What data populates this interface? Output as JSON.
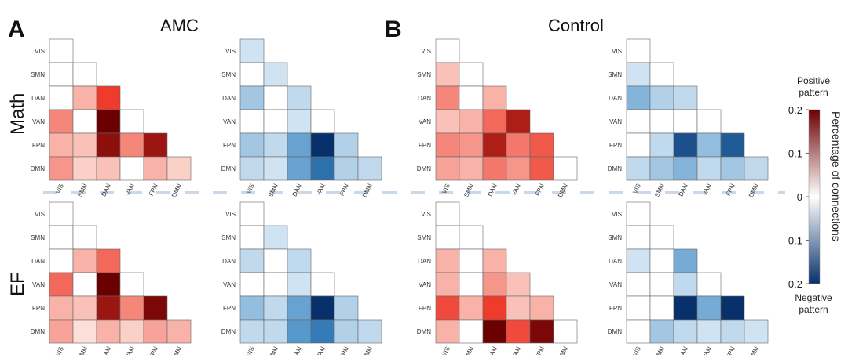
{
  "labels": {
    "panel_a": "A",
    "panel_b": "B",
    "group_a": "AMC",
    "group_b": "Control",
    "row_math": "Math",
    "row_ef": "EF"
  },
  "colorbar": {
    "positive_label_1": "Positive",
    "positive_label_2": "pattern",
    "negative_label_1": "Negative",
    "negative_label_2": "pattern",
    "axis_label": "Percentage of connections",
    "ticks": [
      "0.2",
      "0.1",
      "0",
      "0.1",
      "0.2"
    ],
    "pos_dark": "#6b0000",
    "pos_light": "#fdeee6",
    "neg_dark": "#08306b",
    "neg_light": "#eef5fb"
  },
  "chart_data": {
    "type": "heatmap",
    "networks": [
      "VIS",
      "SMN",
      "DAN",
      "VAN",
      "FPN",
      "DMN"
    ],
    "value_range": [
      -0.2,
      0.2
    ],
    "matrices": [
      {
        "group": "AMC",
        "task": "Math",
        "pattern": "positive",
        "values": [
          [
            0.0
          ],
          [
            0.0,
            0.0
          ],
          [
            0.0,
            0.04,
            0.12
          ],
          [
            0.07,
            0.0,
            0.22,
            0.0
          ],
          [
            0.04,
            0.03,
            0.18,
            0.07,
            0.17
          ],
          [
            0.06,
            0.02,
            0.03,
            0.0,
            0.04,
            0.02
          ]
        ]
      },
      {
        "group": "AMC",
        "task": "Math",
        "pattern": "negative",
        "values": [
          [
            -0.02
          ],
          [
            0.0,
            -0.02
          ],
          [
            -0.05,
            0.0,
            -0.03
          ],
          [
            0.0,
            0.0,
            -0.02,
            0.0
          ],
          [
            -0.05,
            -0.03,
            -0.09,
            -0.2,
            -0.04
          ],
          [
            -0.03,
            -0.02,
            -0.09,
            -0.14,
            -0.04,
            -0.03
          ]
        ]
      },
      {
        "group": "Control",
        "task": "Math",
        "pattern": "positive",
        "values": [
          [
            0.0
          ],
          [
            0.03,
            0.0
          ],
          [
            0.07,
            0.0,
            0.04
          ],
          [
            0.03,
            0.04,
            0.09,
            0.16
          ],
          [
            0.07,
            0.06,
            0.16,
            0.08,
            0.1
          ],
          [
            0.05,
            0.04,
            0.08,
            0.06,
            0.1,
            0.0
          ]
        ]
      },
      {
        "group": "Control",
        "task": "Math",
        "pattern": "negative",
        "values": [
          [
            0.0
          ],
          [
            -0.02,
            0.0
          ],
          [
            -0.07,
            -0.04,
            -0.03
          ],
          [
            0.0,
            0.0,
            0.0,
            0.0
          ],
          [
            0.0,
            -0.03,
            -0.17,
            -0.06,
            -0.16
          ],
          [
            -0.03,
            -0.05,
            -0.07,
            -0.03,
            -0.05,
            -0.03
          ]
        ]
      },
      {
        "group": "AMC",
        "task": "EF",
        "pattern": "positive",
        "values": [
          [
            0.0
          ],
          [
            0.0,
            0.0
          ],
          [
            0.0,
            0.04,
            0.09
          ],
          [
            0.09,
            0.0,
            0.24,
            0.0
          ],
          [
            0.04,
            0.03,
            0.17,
            0.07,
            0.19
          ],
          [
            0.05,
            0.01,
            0.04,
            0.02,
            0.05,
            0.04
          ]
        ]
      },
      {
        "group": "AMC",
        "task": "EF",
        "pattern": "negative",
        "values": [
          [
            0.0
          ],
          [
            0.0,
            -0.02
          ],
          [
            -0.03,
            0.0,
            -0.03
          ],
          [
            0.0,
            0.0,
            -0.02,
            0.0
          ],
          [
            -0.06,
            -0.03,
            -0.09,
            -0.2,
            -0.04
          ],
          [
            -0.03,
            -0.03,
            -0.1,
            -0.13,
            -0.04,
            -0.03
          ]
        ]
      },
      {
        "group": "Control",
        "task": "EF",
        "pattern": "positive",
        "values": [
          [
            0.0
          ],
          [
            0.0,
            0.0
          ],
          [
            0.04,
            0.0,
            0.04
          ],
          [
            0.04,
            0.0,
            0.06,
            0.03
          ],
          [
            0.11,
            0.04,
            0.12,
            0.03,
            0.04
          ],
          [
            0.04,
            0.0,
            0.2,
            0.11,
            0.19,
            0.0
          ]
        ]
      },
      {
        "group": "Control",
        "task": "EF",
        "pattern": "negative",
        "values": [
          [
            0.0
          ],
          [
            0.0,
            0.0
          ],
          [
            -0.02,
            0.0,
            -0.08
          ],
          [
            0.0,
            0.0,
            -0.03,
            0.0
          ],
          [
            0.0,
            0.0,
            -0.2,
            -0.08,
            -0.2
          ],
          [
            0.0,
            -0.05,
            -0.03,
            -0.02,
            -0.03,
            -0.02
          ]
        ]
      }
    ]
  }
}
